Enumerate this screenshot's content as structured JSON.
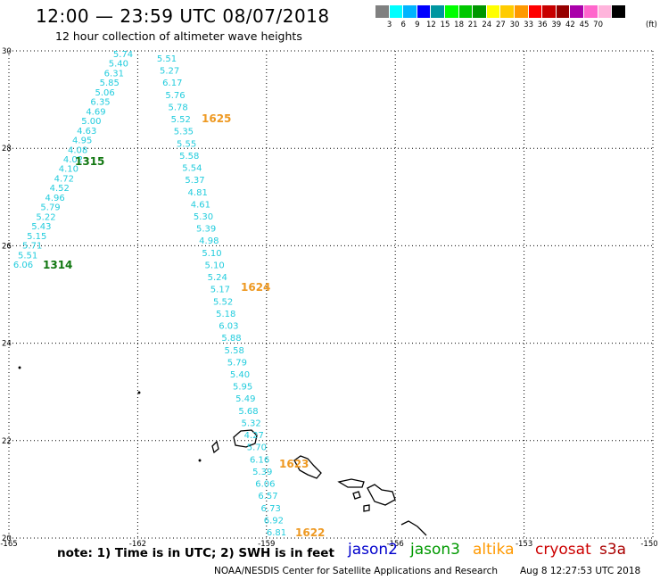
{
  "title": "12:00 — 23:59 UTC 08/07/2018",
  "subtitle": "12 hour collection of altimeter wave heights",
  "scale": {
    "colors": [
      "#808080",
      "#00ffff",
      "#00b4ff",
      "#0000ff",
      "#0096a0",
      "#00ff00",
      "#00c800",
      "#009600",
      "#ffff00",
      "#ffcc00",
      "#ff9900",
      "#ff0000",
      "#c80000",
      "#960000",
      "#aa00aa",
      "#ff66cc",
      "#ffb4dc",
      "#000000"
    ],
    "labels": [
      "3",
      "6",
      "9",
      "12",
      "15",
      "18",
      "21",
      "24",
      "27",
      "30",
      "33",
      "36",
      "39",
      "42",
      "45",
      "70"
    ],
    "unit": "(ft)"
  },
  "axes": {
    "lon_ticks": [
      "-165",
      "-162",
      "-159",
      "-156",
      "-153",
      "-150"
    ],
    "lat_ticks": [
      "30",
      "28",
      "26",
      "24",
      "22",
      "20"
    ]
  },
  "tracks": [
    {
      "id": "track-a",
      "color": "#22ccdd",
      "values": [
        "5.74",
        "5.40",
        "6.31",
        "5.85",
        "5.06",
        "6.35",
        "4.69",
        "5.00",
        "4.63",
        "4.95",
        "4.08",
        "4.02",
        "4.10",
        "4.72",
        "4.52",
        "4.96",
        "5.79",
        "5.22",
        "5.43",
        "5.15",
        "5.71",
        "5.51",
        "6.06"
      ],
      "times": [
        {
          "label": "1315",
          "color": "#117711"
        },
        {
          "label": "1314",
          "color": "#117711"
        }
      ]
    },
    {
      "id": "track-b",
      "color": "#22ccdd",
      "values": [
        "5.51",
        "5.27",
        "6.17",
        "5.76",
        "5.78",
        "5.52",
        "5.35",
        "5.55",
        "5.58",
        "5.54",
        "5.37",
        "4.81",
        "4.61",
        "5.30",
        "5.39",
        "4.98",
        "5.10",
        "5.10",
        "5.24",
        "5.17",
        "5.52",
        "5.18",
        "6.03",
        "5.88",
        "5.58",
        "5.79",
        "5.40",
        "5.95",
        "5.49",
        "5.68",
        "5.32",
        "4.27",
        "5.70",
        "6.16",
        "5.39",
        "6.06",
        "6.57",
        "6.73",
        "6.92",
        "6.81"
      ],
      "times": [
        {
          "label": "1625",
          "color": "#ee9922"
        },
        {
          "label": "1624",
          "color": "#ee9922"
        },
        {
          "label": "1623",
          "color": "#ee9922"
        },
        {
          "label": "1622",
          "color": "#ee9922"
        }
      ]
    }
  ],
  "footer": {
    "note": "note: 1) Time is in UTC; 2) SWH is in feet",
    "satellites": [
      {
        "name": "jason2",
        "color": "#0000cc"
      },
      {
        "name": "jason3",
        "color": "#009900"
      },
      {
        "name": "altika",
        "color": "#ff9900"
      },
      {
        "name": "cryosat",
        "color": "#cc0000"
      },
      {
        "name": "s3a",
        "color": "#aa0000"
      }
    ],
    "credit": "NOAA/NESDIS Center for Satellite Applications and Research",
    "timestamp": "Aug  8 12:27:53 UTC 2018"
  }
}
